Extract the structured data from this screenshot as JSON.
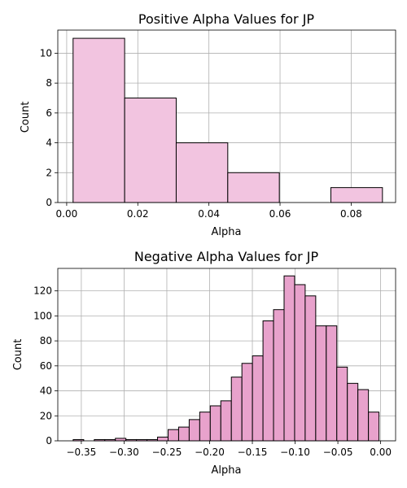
{
  "colors": {
    "top_bar_fill": "#f2c4e0",
    "bottom_bar_fill": "#e8a2cc",
    "grid": "#b0b0b0"
  },
  "chart_data": [
    {
      "type": "bar",
      "title": "Positive Alpha Values for JP",
      "xlabel": "Alpha",
      "ylabel": "Count",
      "xlim": [
        -0.0025,
        0.0925
      ],
      "ylim": [
        0,
        11.55
      ],
      "xticks": [
        0.0,
        0.02,
        0.04,
        0.06,
        0.08
      ],
      "xtick_labels": [
        "0.00",
        "0.02",
        "0.04",
        "0.06",
        "0.08"
      ],
      "yticks": [
        0,
        2,
        4,
        6,
        8,
        10
      ],
      "ytick_labels": [
        "0",
        "2",
        "4",
        "6",
        "8",
        "10"
      ],
      "grid": true,
      "bins": [
        {
          "start": 0.0018,
          "end": 0.0163,
          "count": 11
        },
        {
          "start": 0.0163,
          "end": 0.0308,
          "count": 7
        },
        {
          "start": 0.0308,
          "end": 0.0453,
          "count": 4
        },
        {
          "start": 0.0453,
          "end": 0.0598,
          "count": 2
        },
        {
          "start": 0.0598,
          "end": 0.0743,
          "count": 0
        },
        {
          "start": 0.0743,
          "end": 0.0888,
          "count": 1
        }
      ]
    },
    {
      "type": "bar",
      "title": "Negative Alpha Values for JP",
      "xlabel": "Alpha",
      "ylabel": "Count",
      "xlim": [
        -0.3775,
        0.0175
      ],
      "ylim": [
        0,
        138
      ],
      "xticks": [
        -0.35,
        -0.3,
        -0.25,
        -0.2,
        -0.15,
        -0.1,
        -0.05,
        0.0
      ],
      "xtick_labels": [
        "−0.35",
        "−0.30",
        "−0.25",
        "−0.20",
        "−0.15",
        "−0.10",
        "−0.05",
        "0.00"
      ],
      "yticks": [
        0,
        20,
        40,
        60,
        80,
        100,
        120
      ],
      "ytick_labels": [
        "0",
        "20",
        "40",
        "60",
        "80",
        "100",
        "120"
      ],
      "grid": true,
      "bin_start": -0.3595,
      "bin_width": 0.01233,
      "counts": [
        1,
        0,
        1,
        1,
        2,
        1,
        1,
        1,
        3,
        9,
        11,
        17,
        23,
        28,
        32,
        51,
        62,
        68,
        96,
        105,
        132,
        125,
        116,
        92,
        92,
        59,
        46,
        41,
        23
      ]
    }
  ]
}
